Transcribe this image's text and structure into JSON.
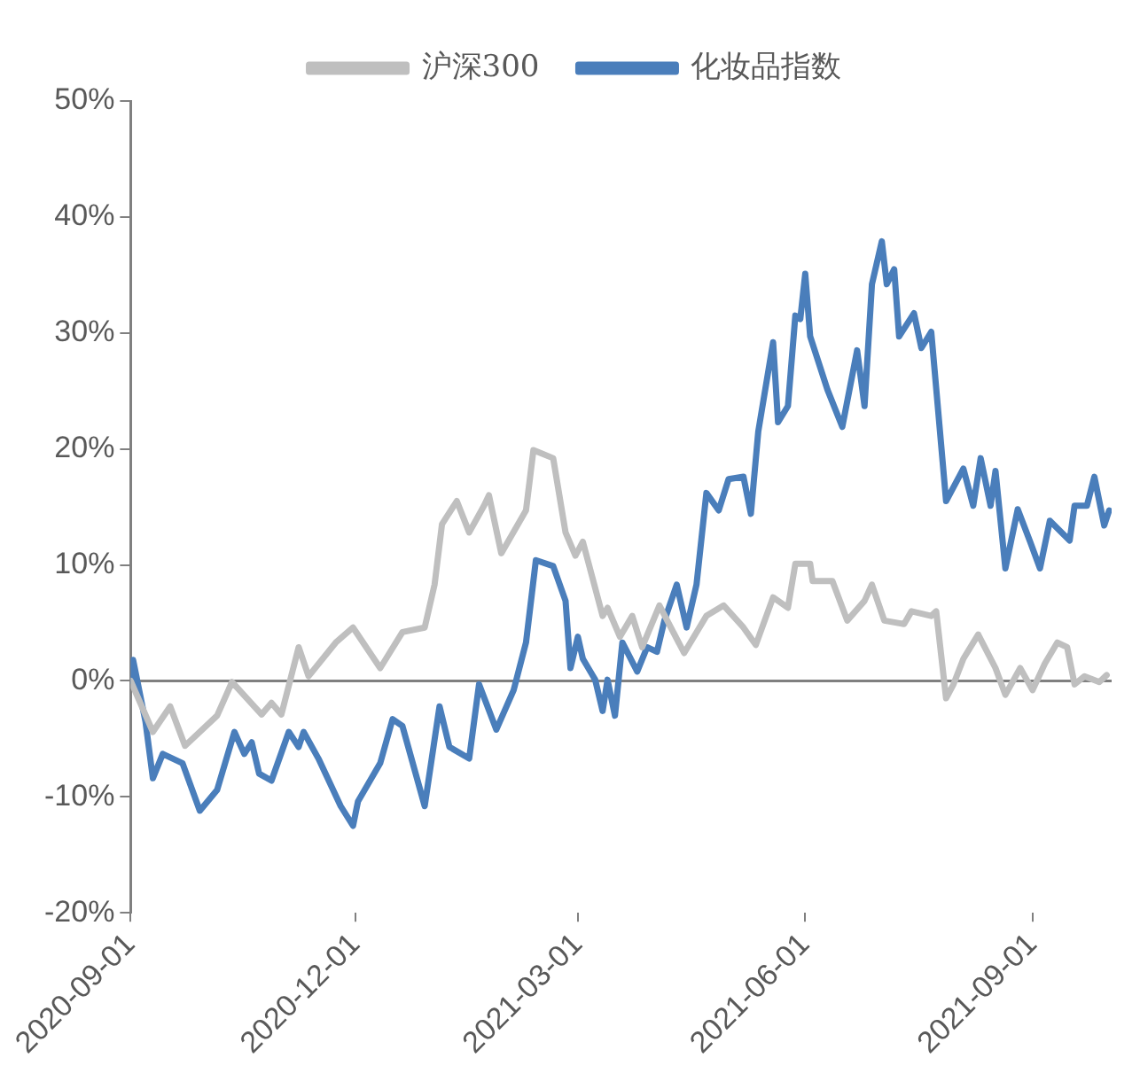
{
  "chart_data": {
    "type": "line",
    "series": [
      {
        "name": "沪深300",
        "color": "#bfbfbf",
        "x": [
          "2020-09-01",
          "2020-09-10",
          "2020-09-17",
          "2020-09-23",
          "2020-10-06",
          "2020-10-12",
          "2020-10-24",
          "2020-10-28",
          "2020-11-01",
          "2020-11-08",
          "2020-11-12",
          "2020-11-23",
          "2020-11-30",
          "2020-12-11",
          "2020-12-20",
          "2020-12-29",
          "2021-01-02",
          "2021-01-05",
          "2021-01-11",
          "2021-01-16",
          "2021-01-22",
          "2021-01-24",
          "2021-01-29",
          "2021-02-08",
          "2021-02-11",
          "2021-02-19",
          "2021-02-24",
          "2021-02-28",
          "2021-03-03",
          "2021-03-11",
          "2021-03-13",
          "2021-03-18",
          "2021-03-23",
          "2021-03-27",
          "2021-04-03",
          "2021-04-13",
          "2021-04-22",
          "2021-04-29",
          "2021-05-07",
          "2021-05-12",
          "2021-05-19",
          "2021-05-25",
          "2021-05-28",
          "2021-06-03",
          "2021-06-04",
          "2021-06-12",
          "2021-06-18",
          "2021-06-25",
          "2021-06-28",
          "2021-07-03",
          "2021-07-11",
          "2021-07-14",
          "2021-07-22",
          "2021-07-24",
          "2021-07-28",
          "2021-07-31",
          "2021-08-04",
          "2021-08-10",
          "2021-08-17",
          "2021-08-21",
          "2021-08-27",
          "2021-09-01",
          "2021-09-06",
          "2021-09-11",
          "2021-09-15",
          "2021-09-18",
          "2021-09-22",
          "2021-09-28",
          "2021-10-01"
        ],
        "values": [
          0,
          -4.4,
          -2.2,
          -5.6,
          -3.0,
          -0.1,
          -2.9,
          -1.9,
          -2.9,
          2.9,
          0.4,
          3.3,
          4.6,
          1.1,
          4.2,
          4.6,
          8.3,
          13.5,
          15.5,
          12.8,
          15.1,
          16,
          11.0,
          14.7,
          19.9,
          19.2,
          12.8,
          10.8,
          12,
          5.6,
          6.3,
          3.8,
          5.6,
          2.9,
          6.5,
          2.4,
          5.6,
          6.5,
          4.6,
          3.1,
          7.2,
          6.3,
          10.1,
          10.1,
          8.6,
          8.6,
          5.2,
          6.9,
          8.3,
          5.2,
          4.9,
          6.0,
          5.6,
          6.0,
          -1.5,
          -0.3,
          1.9,
          4.0,
          1.1,
          -1.2,
          1.1,
          -0.8,
          1.5,
          3.3,
          2.9,
          -0.3,
          0.4,
          -0.1,
          0.5
        ]
      },
      {
        "name": "化妆品指数",
        "color": "#4a7ebb",
        "x": [
          "2020-09-01",
          "2020-09-02",
          "2020-09-07",
          "2020-09-10",
          "2020-09-14",
          "2020-09-22",
          "2020-09-29",
          "2020-10-06",
          "2020-10-13",
          "2020-10-17",
          "2020-10-20",
          "2020-10-23",
          "2020-10-28",
          "2020-11-04",
          "2020-11-08",
          "2020-11-10",
          "2020-11-16",
          "2020-11-25",
          "2020-11-30",
          "2020-12-02",
          "2020-12-11",
          "2020-12-16",
          "2020-12-20",
          "2020-12-29",
          "2021-01-04",
          "2021-01-08",
          "2021-01-16",
          "2021-01-20",
          "2021-01-27",
          "2021-02-03",
          "2021-02-08",
          "2021-02-12",
          "2021-02-19",
          "2021-02-24",
          "2021-02-26",
          "2021-03-01",
          "2021-03-03",
          "2021-03-08",
          "2021-03-11",
          "2021-03-13",
          "2021-03-16",
          "2021-03-19",
          "2021-03-25",
          "2021-03-29",
          "2021-04-02",
          "2021-04-05",
          "2021-04-10",
          "2021-04-14",
          "2021-04-18",
          "2021-04-22",
          "2021-04-27",
          "2021-05-01",
          "2021-05-07",
          "2021-05-10",
          "2021-05-13",
          "2021-05-19",
          "2021-05-21",
          "2021-05-25",
          "2021-05-28",
          "2021-05-30",
          "2021-06-01",
          "2021-06-03",
          "2021-06-10",
          "2021-06-16",
          "2021-06-22",
          "2021-06-25",
          "2021-06-28",
          "2021-07-02",
          "2021-07-04",
          "2021-07-07",
          "2021-07-09",
          "2021-07-15",
          "2021-07-18",
          "2021-07-22",
          "2021-07-28",
          "2021-08-04",
          "2021-08-08",
          "2021-08-11",
          "2021-08-15",
          "2021-08-17",
          "2021-08-21",
          "2021-08-26",
          "2021-08-31",
          "2021-09-04",
          "2021-09-08",
          "2021-09-16",
          "2021-09-18",
          "2021-09-23",
          "2021-09-26",
          "2021-09-30",
          "2021-10-02"
        ],
        "values": [
          0,
          1.8,
          -3.5,
          -8.4,
          -6.3,
          -7.1,
          -11.2,
          -9.4,
          -4.4,
          -6.3,
          -5.3,
          -8.0,
          -8.6,
          -4.4,
          -5.7,
          -4.4,
          -6.7,
          -10.8,
          -12.5,
          -10.4,
          -7.1,
          -3.3,
          -3.9,
          -10.8,
          -2.2,
          -5.7,
          -6.7,
          -0.3,
          -4.2,
          -0.8,
          3.3,
          10.4,
          9.9,
          6.9,
          1.1,
          3.8,
          1.9,
          0.1,
          -2.6,
          0.1,
          -3.0,
          3.3,
          0.8,
          2.9,
          2.5,
          5.2,
          8.3,
          4.6,
          8.3,
          16.2,
          14.7,
          17.4,
          17.6,
          14.4,
          21.5,
          29.2,
          22.3,
          23.7,
          31.5,
          31.2,
          35.1,
          29.7,
          25.1,
          21.9,
          28.5,
          23.7,
          34.2,
          37.9,
          34.2,
          35.5,
          29.7,
          31.7,
          28.7,
          30.1,
          15.5,
          18.3,
          15.1,
          19.2,
          15.1,
          18.1,
          9.7,
          14.8,
          12.0,
          9.7,
          13.8,
          12.1,
          15.1,
          15.1,
          17.6,
          13.4,
          14.7
        ]
      }
    ],
    "xlim": [
      "2020-09-01",
      "2021-10-03"
    ],
    "xticks": [
      "2020-09-01",
      "2020-12-01",
      "2021-03-01",
      "2021-06-01",
      "2021-09-01"
    ],
    "ylim": [
      -20,
      50
    ],
    "yticks": [
      {
        "value": -20,
        "label": "-20%"
      },
      {
        "value": -10,
        "label": "-10%"
      },
      {
        "value": 0,
        "label": "0%"
      },
      {
        "value": 10,
        "label": "10%"
      },
      {
        "value": 20,
        "label": "20%"
      },
      {
        "value": 30,
        "label": "30%"
      },
      {
        "value": 40,
        "label": "40%"
      },
      {
        "value": 50,
        "label": "50%"
      }
    ],
    "ref_lines": [
      {
        "axis": "y",
        "value": 0,
        "color": "#808080"
      }
    ],
    "grid": false,
    "legend": "top",
    "marker": "none",
    "line_style": "solid"
  }
}
